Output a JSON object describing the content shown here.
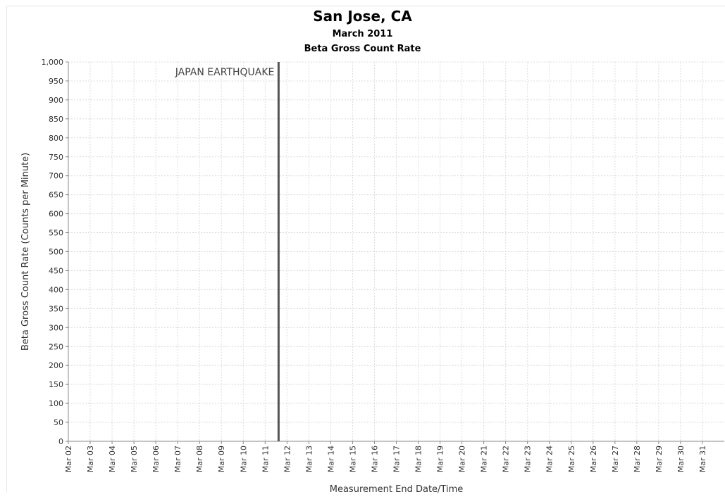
{
  "title": "San Jose, CA",
  "subtitle1": "March 2011",
  "subtitle2": "Beta Gross Count Rate",
  "chart_data": {
    "type": "line",
    "title": "San Jose, CA",
    "subtitle": [
      "March 2011",
      "Beta Gross Count Rate"
    ],
    "xlabel": "Measurement End Date/Time",
    "ylabel": "Beta Gross Count Rate (Counts per Minute)",
    "x_ticks": [
      "Mar 02",
      "Mar 03",
      "Mar 04",
      "Mar 05",
      "Mar 06",
      "Mar 07",
      "Mar 08",
      "Mar 09",
      "Mar 10",
      "Mar 11",
      "Mar 12",
      "Mar 13",
      "Mar 14",
      "Mar 15",
      "Mar 16",
      "Mar 17",
      "Mar 18",
      "Mar 19",
      "Mar 20",
      "Mar 21",
      "Mar 22",
      "Mar 23",
      "Mar 24",
      "Mar 25",
      "Mar 26",
      "Mar 27",
      "Mar 28",
      "Mar 29",
      "Mar 30",
      "Mar 31"
    ],
    "y_ticks": [
      "0",
      "50",
      "100",
      "150",
      "200",
      "250",
      "300",
      "350",
      "400",
      "450",
      "500",
      "550",
      "600",
      "650",
      "700",
      "750",
      "800",
      "850",
      "900",
      "950",
      "1,000"
    ],
    "ylim": [
      0,
      1000
    ],
    "xlim": [
      "2011-03-02",
      "2011-04-01"
    ],
    "grid": true,
    "series": [],
    "annotations": [
      {
        "text": "JAPAN EARTHQUAKE",
        "x": "2011-03-11 14:46",
        "type": "vertical-line",
        "color": "#555555"
      }
    ]
  }
}
